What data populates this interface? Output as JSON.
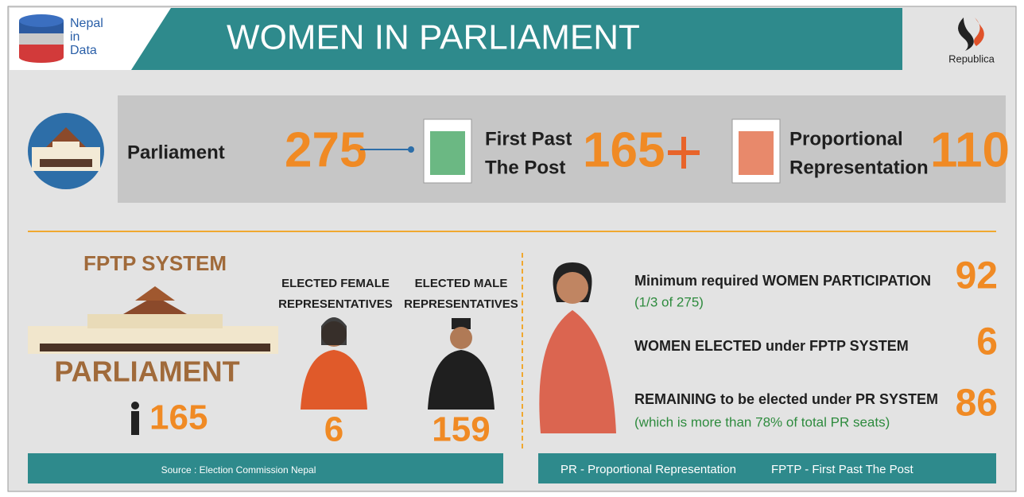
{
  "header": {
    "brand": [
      "Nepal",
      "in",
      "Data"
    ],
    "title": "WOMEN IN PARLIAMENT",
    "publisher": "Republica"
  },
  "summary": {
    "parliament": {
      "label": "Parliament",
      "seats": "275"
    },
    "fptp": {
      "label": [
        "First Past",
        "The Post"
      ],
      "seats": "165"
    },
    "pr": {
      "label": [
        "Proportional",
        "Representation"
      ],
      "seats": "110"
    }
  },
  "fptp_system": {
    "title": "FPTP SYSTEM",
    "subtitle": "PARLIAMENT",
    "seats": "165",
    "female": {
      "label": [
        "ELECTED FEMALE",
        "REPRESENTATIVES"
      ],
      "count": "6"
    },
    "male": {
      "label": [
        "ELECTED MALE",
        "REPRESENTATIVES"
      ],
      "count": "159"
    }
  },
  "women": {
    "items": [
      {
        "label": "Minimum required WOMEN PARTICIPATION",
        "note": "(1/3 of 275)",
        "value": "92"
      },
      {
        "label": "WOMEN ELECTED under FPTP SYSTEM",
        "value": "6"
      },
      {
        "label": "REMAINING to be elected under PR SYSTEM",
        "note": "(which is more than 78% of total PR seats)",
        "value": "86"
      }
    ]
  },
  "footer": {
    "source": "Source : Election Commission Nepal",
    "legend": [
      "PR - Proportional Representation",
      "FPTP - First Past The Post"
    ]
  }
}
